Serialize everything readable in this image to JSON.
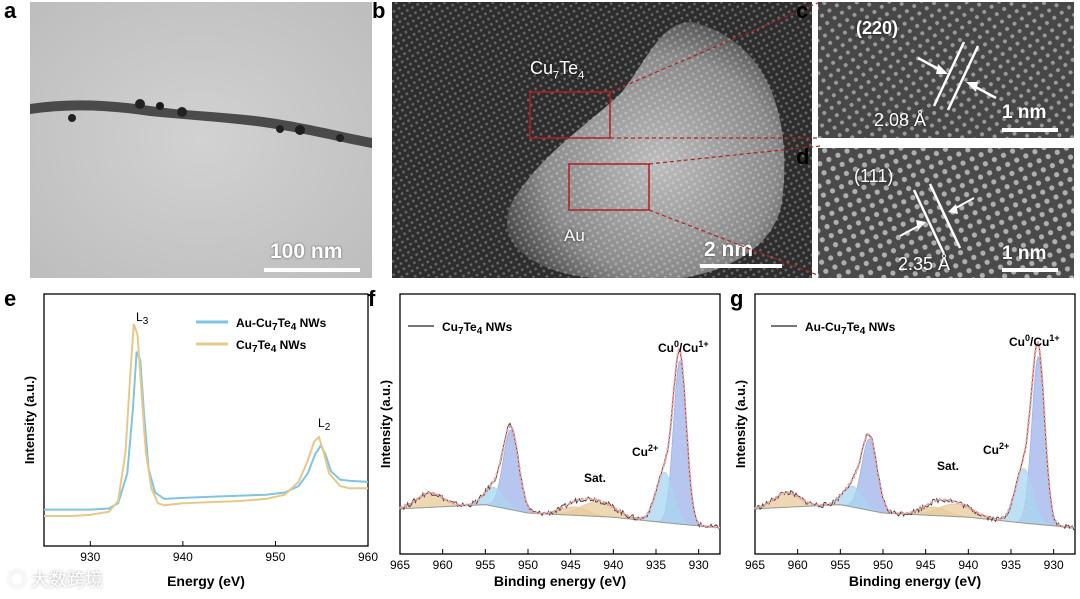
{
  "panels": {
    "a": {
      "label": "a",
      "scale_text": "100 nm"
    },
    "b": {
      "label": "b",
      "phase1": "Cu7Te4",
      "phase1_main": "Cu",
      "phase1_s1": "7",
      "phase1_mid": "Te",
      "phase1_s2": "4",
      "phase2": "Au",
      "scale_text": "2 nm"
    },
    "c": {
      "label": "c",
      "plane": "(220)",
      "spacing": "2.08 Å",
      "scale_text": "1 nm"
    },
    "d": {
      "label": "d",
      "plane": "(111)",
      "spacing": "2.35 Å",
      "scale_text": "1 nm"
    },
    "e": {
      "label": "e"
    },
    "f": {
      "label": "f"
    },
    "g": {
      "label": "g"
    }
  },
  "watermark": {
    "text": "大数跨境"
  },
  "colors": {
    "blue": "#7fc4e3",
    "yellow": "#e6c98a",
    "fit_red": "#e9a0a0",
    "raw": "#444444",
    "cu0_fill": "#9fb3ea",
    "cu2_fill": "#a8d6f0",
    "sat_fill": "#e8c99a"
  },
  "chart_data": [
    {
      "type": "line",
      "panel": "e",
      "xlabel": "Energy (eV)",
      "ylabel": "Intensity (a.u.)",
      "xlim": [
        925,
        960
      ],
      "xticks": [
        "930",
        "940",
        "950",
        "960"
      ],
      "annotations": {
        "L3": {
          "main": "L",
          "sub": "3"
        },
        "L2": {
          "main": "L",
          "sub": "2"
        }
      },
      "series": [
        {
          "name": "Au-Cu7Te4 NWs",
          "legend_main": "Au-Cu",
          "legend_s1": "7",
          "legend_mid": "Te",
          "legend_s2": "4",
          "legend_tail": " NWs",
          "x": [
            925,
            928,
            930,
            932,
            933,
            934,
            934.6,
            935,
            935.4,
            935.8,
            936.3,
            937,
            938,
            940,
            943,
            946,
            949,
            951,
            952.5,
            953.5,
            954.3,
            954.9,
            955.4,
            956,
            957,
            958,
            960
          ],
          "y": [
            0.03,
            0.03,
            0.03,
            0.035,
            0.06,
            0.2,
            0.5,
            0.77,
            0.73,
            0.48,
            0.22,
            0.11,
            0.08,
            0.085,
            0.09,
            0.095,
            0.1,
            0.11,
            0.14,
            0.2,
            0.29,
            0.33,
            0.29,
            0.21,
            0.17,
            0.165,
            0.16
          ]
        },
        {
          "name": "Cu7Te4 NWs",
          "legend_main": "Cu",
          "legend_s1": "7",
          "legend_mid": "Te",
          "legend_s2": "4",
          "legend_tail": " NWs",
          "x": [
            925,
            928,
            930,
            932,
            933,
            933.8,
            934.3,
            934.7,
            935.1,
            935.5,
            936,
            936.6,
            937.3,
            938,
            940,
            943,
            946,
            949,
            951,
            952.5,
            953.5,
            954.2,
            954.7,
            955.2,
            955.8,
            957,
            958,
            960
          ],
          "y": [
            0.0,
            0.0,
            0.005,
            0.02,
            0.07,
            0.3,
            0.65,
            0.9,
            0.85,
            0.6,
            0.3,
            0.13,
            0.06,
            0.05,
            0.06,
            0.065,
            0.07,
            0.08,
            0.1,
            0.16,
            0.26,
            0.35,
            0.37,
            0.3,
            0.2,
            0.14,
            0.13,
            0.13
          ]
        }
      ]
    },
    {
      "type": "line",
      "panel": "f",
      "title": "Cu7Te4 NWs",
      "legend_main": "Cu",
      "legend_s1": "7",
      "legend_mid": "Te",
      "legend_s2": "4",
      "legend_tail": " NWs",
      "xlabel": "Binding energy (eV)",
      "ylabel": "Intensity (a.u.)",
      "xlim": [
        965,
        927.5
      ],
      "xticks": [
        "965",
        "960",
        "955",
        "950",
        "945",
        "940",
        "935",
        "930"
      ],
      "annotations": {
        "sat": "Sat.",
        "cu2": {
          "main": "Cu",
          "sup": "2+"
        },
        "cu0": {
          "main": "Cu",
          "sup1": "0",
          "mid": "/Cu",
          "sup2": "1+"
        }
      },
      "peaks": [
        {
          "name": "Cu0/Cu1+ 2p3/2",
          "center": 932.2,
          "height": 0.78,
          "sigma": 0.75,
          "fill": "cu0"
        },
        {
          "name": "Cu2+ 2p3/2",
          "center": 934.0,
          "height": 0.24,
          "sigma": 1.0,
          "fill": "cu2"
        },
        {
          "name": "Cu0/Cu1+ 2p1/2",
          "center": 952.0,
          "height": 0.38,
          "sigma": 0.9,
          "fill": "cu0"
        },
        {
          "name": "Cu2+ 2p1/2",
          "center": 954.0,
          "height": 0.09,
          "sigma": 1.1,
          "fill": "cu2"
        },
        {
          "name": "Sat 1",
          "center": 941.8,
          "height": 0.07,
          "sigma": 2.0,
          "fill": "sat"
        },
        {
          "name": "Sat 2",
          "center": 944.5,
          "height": 0.04,
          "sigma": 1.5,
          "fill": "sat"
        },
        {
          "name": "Sat 3",
          "center": 961.5,
          "height": 0.07,
          "sigma": 1.5,
          "fill": "sat"
        }
      ],
      "background": [
        [
          965,
          0.12
        ],
        [
          955,
          0.14
        ],
        [
          950,
          0.1
        ],
        [
          940,
          0.08
        ],
        [
          933,
          0.05
        ],
        [
          927.5,
          0.03
        ]
      ]
    },
    {
      "type": "line",
      "panel": "g",
      "title": "Au-Cu7Te4 NWs",
      "legend_main": "Au-Cu",
      "legend_s1": "7",
      "legend_mid": "Te",
      "legend_s2": "4",
      "legend_tail": " NWs",
      "xlabel": "Binding energy (eV)",
      "ylabel": "Intensity (a.u.)",
      "xlim": [
        965,
        927.5
      ],
      "xticks": [
        "965",
        "960",
        "955",
        "950",
        "945",
        "940",
        "935",
        "930"
      ],
      "annotations": {
        "sat": "Sat.",
        "cu2": {
          "main": "Cu",
          "sup": "2+"
        },
        "cu0": {
          "main": "Cu",
          "sup1": "0",
          "mid": "/Cu",
          "sup2": "1+"
        }
      },
      "peaks": [
        {
          "name": "Cu0/Cu1+ 2p3/2",
          "center": 931.8,
          "height": 0.8,
          "sigma": 0.75,
          "fill": "cu0"
        },
        {
          "name": "Cu2+ 2p3/2",
          "center": 933.5,
          "height": 0.26,
          "sigma": 1.0,
          "fill": "cu2"
        },
        {
          "name": "Cu0/Cu1+ 2p1/2",
          "center": 951.6,
          "height": 0.34,
          "sigma": 0.9,
          "fill": "cu0"
        },
        {
          "name": "Cu2+ 2p1/2",
          "center": 953.6,
          "height": 0.1,
          "sigma": 1.1,
          "fill": "cu2"
        },
        {
          "name": "Sat 1",
          "center": 941.5,
          "height": 0.06,
          "sigma": 2.0,
          "fill": "sat"
        },
        {
          "name": "Sat 2",
          "center": 944.0,
          "height": 0.04,
          "sigma": 1.5,
          "fill": "sat"
        },
        {
          "name": "Sat 3",
          "center": 961.3,
          "height": 0.07,
          "sigma": 1.5,
          "fill": "sat"
        }
      ],
      "background": [
        [
          965,
          0.12
        ],
        [
          955,
          0.14
        ],
        [
          950,
          0.1
        ],
        [
          940,
          0.08
        ],
        [
          933,
          0.05
        ],
        [
          927.5,
          0.03
        ]
      ]
    }
  ]
}
